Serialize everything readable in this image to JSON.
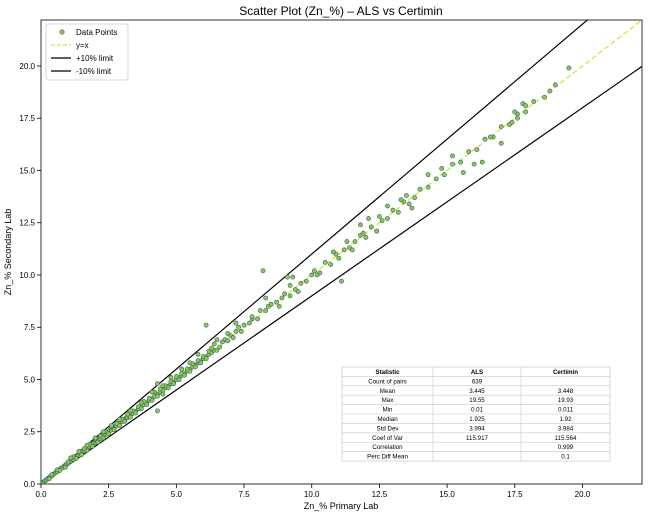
{
  "chart_data": {
    "type": "scatter",
    "title": "Scatter Plot (Zn_%) – ALS vs Certimin",
    "xlabel": "Zn_% Primary Lab",
    "ylabel": "Zn_% Secondary Lab",
    "xlim": [
      0,
      22.2
    ],
    "ylim": [
      0,
      22.2
    ],
    "xticks": [
      "0.0",
      "2.5",
      "5.0",
      "7.5",
      "10.0",
      "12.5",
      "15.0",
      "17.5",
      "20.0"
    ],
    "yticks": [
      "0.0",
      "2.5",
      "5.0",
      "7.5",
      "10.0",
      "12.5",
      "15.0",
      "17.5",
      "20.0"
    ],
    "grid": false,
    "legend_position": "top-left",
    "legend": [
      {
        "label": "Data Points",
        "kind": "marker",
        "color": "#8fc94a",
        "edge": "#2f5f6f"
      },
      {
        "label": "y=x",
        "kind": "dashed",
        "color": "#c9e84a"
      },
      {
        "label": "+10% limit",
        "kind": "solid",
        "color": "#000000"
      },
      {
        "label": "-10% limit",
        "kind": "solid",
        "color": "#000000"
      }
    ],
    "reference_lines": [
      {
        "name": "y=x",
        "slope": 1.0
      },
      {
        "name": "+10% limit",
        "slope": 1.1
      },
      {
        "name": "-10% limit",
        "slope": 0.9
      }
    ],
    "marker_color": "#8fc94a",
    "marker_edge": "#2f5f6f",
    "points": [
      [
        0.01,
        0.01
      ],
      [
        0.05,
        0.04
      ],
      [
        0.08,
        0.09
      ],
      [
        0.12,
        0.11
      ],
      [
        0.15,
        0.16
      ],
      [
        0.2,
        0.19
      ],
      [
        0.25,
        0.27
      ],
      [
        0.3,
        0.29
      ],
      [
        0.35,
        0.36
      ],
      [
        0.4,
        0.38
      ],
      [
        0.45,
        0.47
      ],
      [
        0.5,
        0.49
      ],
      [
        0.55,
        0.57
      ],
      [
        0.6,
        0.58
      ],
      [
        0.65,
        0.66
      ],
      [
        0.7,
        0.69
      ],
      [
        0.75,
        0.77
      ],
      [
        0.8,
        0.78
      ],
      [
        0.85,
        0.86
      ],
      [
        0.9,
        0.88
      ],
      [
        0.95,
        0.97
      ],
      [
        1.0,
        0.98
      ],
      [
        1.05,
        1.07
      ],
      [
        1.1,
        1.08
      ],
      [
        1.15,
        1.17
      ],
      [
        1.2,
        1.18
      ],
      [
        1.25,
        1.27
      ],
      [
        1.3,
        1.28
      ],
      [
        1.35,
        1.37
      ],
      [
        1.4,
        1.38
      ],
      [
        1.45,
        1.47
      ],
      [
        1.5,
        1.48
      ],
      [
        1.55,
        1.57
      ],
      [
        1.6,
        1.58
      ],
      [
        1.65,
        1.67
      ],
      [
        1.7,
        1.69
      ],
      [
        1.75,
        1.77
      ],
      [
        1.8,
        1.78
      ],
      [
        1.85,
        1.87
      ],
      [
        1.9,
        1.88
      ],
      [
        1.95,
        1.97
      ],
      [
        2.0,
        1.98
      ],
      [
        2.05,
        2.07
      ],
      [
        2.1,
        2.08
      ],
      [
        2.15,
        2.17
      ],
      [
        2.2,
        2.18
      ],
      [
        2.25,
        2.27
      ],
      [
        2.3,
        2.28
      ],
      [
        2.35,
        2.38
      ],
      [
        2.4,
        2.38
      ],
      [
        2.45,
        2.47
      ],
      [
        2.5,
        2.48
      ],
      [
        2.55,
        2.58
      ],
      [
        2.6,
        2.58
      ],
      [
        2.65,
        2.67
      ],
      [
        2.7,
        2.69
      ],
      [
        2.75,
        2.78
      ],
      [
        2.8,
        2.78
      ],
      [
        2.85,
        2.88
      ],
      [
        2.9,
        2.88
      ],
      [
        2.95,
        2.98
      ],
      [
        3.0,
        2.98
      ],
      [
        3.05,
        3.08
      ],
      [
        3.1,
        3.08
      ],
      [
        3.15,
        3.18
      ],
      [
        3.2,
        3.18
      ],
      [
        3.25,
        3.28
      ],
      [
        3.3,
        3.28
      ],
      [
        3.35,
        3.38
      ],
      [
        3.4,
        3.38
      ],
      [
        3.5,
        3.48
      ],
      [
        3.6,
        3.6
      ],
      [
        3.7,
        3.68
      ],
      [
        3.8,
        3.8
      ],
      [
        3.9,
        3.88
      ],
      [
        4.0,
        4.0
      ],
      [
        4.1,
        4.08
      ],
      [
        4.2,
        4.2
      ],
      [
        4.3,
        4.28
      ],
      [
        4.4,
        4.4
      ],
      [
        4.5,
        4.48
      ],
      [
        4.6,
        4.6
      ],
      [
        4.7,
        4.68
      ],
      [
        4.8,
        4.8
      ],
      [
        4.9,
        4.88
      ],
      [
        5.0,
        5.0
      ],
      [
        5.1,
        5.08
      ],
      [
        5.2,
        5.2
      ],
      [
        5.3,
        5.28
      ],
      [
        5.4,
        5.4
      ],
      [
        5.5,
        5.48
      ],
      [
        5.6,
        5.6
      ],
      [
        5.7,
        5.68
      ],
      [
        5.8,
        5.8
      ],
      [
        5.9,
        5.88
      ],
      [
        6.0,
        6.0
      ],
      [
        6.1,
        6.08
      ],
      [
        6.2,
        6.2
      ],
      [
        6.3,
        6.28
      ],
      [
        6.4,
        6.4
      ],
      [
        0.3,
        0.25
      ],
      [
        0.6,
        0.68
      ],
      [
        0.9,
        0.8
      ],
      [
        1.2,
        1.3
      ],
      [
        1.5,
        1.4
      ],
      [
        1.8,
        1.9
      ],
      [
        2.1,
        2.0
      ],
      [
        2.4,
        2.5
      ],
      [
        2.7,
        2.6
      ],
      [
        3.0,
        3.1
      ],
      [
        3.3,
        3.2
      ],
      [
        3.6,
        3.7
      ],
      [
        3.9,
        3.8
      ],
      [
        4.2,
        4.4
      ],
      [
        4.5,
        4.3
      ],
      [
        4.8,
        4.9
      ],
      [
        5.1,
        5.0
      ],
      [
        5.4,
        5.5
      ],
      [
        5.7,
        5.6
      ],
      [
        6.0,
        6.1
      ],
      [
        0.4,
        0.45
      ],
      [
        0.7,
        0.65
      ],
      [
        1.0,
        1.05
      ],
      [
        1.3,
        1.22
      ],
      [
        1.6,
        1.7
      ],
      [
        1.9,
        1.8
      ],
      [
        2.2,
        2.3
      ],
      [
        2.5,
        2.4
      ],
      [
        2.8,
        2.9
      ],
      [
        3.1,
        3.0
      ],
      [
        3.4,
        3.5
      ],
      [
        3.7,
        3.6
      ],
      [
        4.0,
        4.1
      ],
      [
        4.3,
        4.2
      ],
      [
        4.6,
        4.7
      ],
      [
        4.9,
        4.8
      ],
      [
        5.2,
        5.3
      ],
      [
        5.5,
        5.4
      ],
      [
        5.8,
        5.9
      ],
      [
        6.1,
        6.0
      ],
      [
        1.1,
        1.25
      ],
      [
        1.4,
        1.55
      ],
      [
        1.7,
        1.6
      ],
      [
        2.0,
        2.15
      ],
      [
        2.3,
        2.2
      ],
      [
        2.6,
        2.75
      ],
      [
        2.9,
        2.8
      ],
      [
        3.2,
        3.35
      ],
      [
        3.5,
        3.4
      ],
      [
        3.8,
        3.95
      ],
      [
        4.1,
        4.0
      ],
      [
        4.4,
        4.55
      ],
      [
        4.7,
        4.6
      ],
      [
        5.0,
        5.15
      ],
      [
        5.3,
        5.2
      ],
      [
        5.6,
        5.75
      ],
      [
        5.9,
        5.8
      ],
      [
        6.2,
        6.35
      ],
      [
        6.5,
        6.4
      ],
      [
        6.8,
        6.9
      ],
      [
        6.6,
        6.55
      ],
      [
        6.7,
        6.8
      ],
      [
        6.9,
        6.85
      ],
      [
        7.0,
        7.1
      ],
      [
        7.1,
        7.0
      ],
      [
        7.2,
        7.3
      ],
      [
        7.4,
        7.3
      ],
      [
        7.5,
        7.6
      ],
      [
        7.7,
        7.7
      ],
      [
        7.8,
        7.9
      ],
      [
        8.0,
        7.9
      ],
      [
        8.1,
        8.3
      ],
      [
        8.3,
        8.3
      ],
      [
        8.4,
        8.5
      ],
      [
        8.5,
        8.6
      ],
      [
        8.7,
        8.7
      ],
      [
        8.9,
        8.9
      ],
      [
        9.0,
        9.1
      ],
      [
        9.2,
        9.0
      ],
      [
        9.4,
        9.3
      ],
      [
        9.6,
        9.6
      ],
      [
        9.8,
        9.7
      ],
      [
        10.0,
        10.0
      ],
      [
        10.1,
        10.2
      ],
      [
        10.3,
        10.1
      ],
      [
        10.5,
        10.6
      ],
      [
        10.7,
        10.5
      ],
      [
        10.9,
        11.0
      ],
      [
        11.0,
        10.8
      ],
      [
        11.2,
        11.2
      ],
      [
        11.4,
        11.3
      ],
      [
        11.6,
        11.6
      ],
      [
        11.8,
        11.9
      ],
      [
        12.0,
        11.8
      ],
      [
        12.2,
        12.3
      ],
      [
        12.4,
        12.1
      ],
      [
        12.6,
        12.6
      ],
      [
        12.8,
        12.7
      ],
      [
        13.0,
        13.1
      ],
      [
        13.2,
        13.0
      ],
      [
        13.4,
        13.5
      ],
      [
        13.6,
        13.4
      ],
      [
        13.8,
        13.7
      ],
      [
        14.0,
        14.1
      ],
      [
        14.3,
        14.2
      ],
      [
        14.6,
        14.6
      ],
      [
        14.9,
        14.8
      ],
      [
        15.2,
        15.3
      ],
      [
        15.5,
        15.4
      ],
      [
        15.8,
        15.9
      ],
      [
        16.1,
        16.0
      ],
      [
        16.4,
        16.5
      ],
      [
        16.7,
        16.6
      ],
      [
        17.0,
        17.1
      ],
      [
        17.3,
        17.2
      ],
      [
        17.6,
        17.7
      ],
      [
        17.9,
        17.8
      ],
      [
        18.2,
        18.3
      ],
      [
        18.6,
        18.5
      ],
      [
        19.0,
        19.1
      ],
      [
        4.3,
        4.8
      ],
      [
        4.3,
        3.5
      ],
      [
        6.1,
        7.6
      ],
      [
        6.3,
        6.5
      ],
      [
        6.5,
        6.9
      ],
      [
        7.2,
        7.7
      ],
      [
        8.2,
        10.2
      ],
      [
        8.3,
        8.9
      ],
      [
        9.1,
        9.9
      ],
      [
        9.3,
        9.9
      ],
      [
        9.5,
        9.2
      ],
      [
        10.2,
        10.0
      ],
      [
        10.8,
        11.1
      ],
      [
        11.1,
        9.7
      ],
      [
        11.3,
        11.6
      ],
      [
        11.5,
        11.2
      ],
      [
        11.8,
        12.4
      ],
      [
        12.1,
        12.7
      ],
      [
        12.4,
        12.1
      ],
      [
        12.8,
        13.3
      ],
      [
        13.3,
        13.6
      ],
      [
        13.7,
        13.2
      ],
      [
        14.3,
        14.8
      ],
      [
        14.8,
        15.1
      ],
      [
        15.2,
        15.7
      ],
      [
        15.6,
        14.9
      ],
      [
        16.0,
        15.3
      ],
      [
        16.3,
        15.4
      ],
      [
        16.6,
        16.6
      ],
      [
        17.0,
        16.3
      ],
      [
        17.4,
        17.3
      ],
      [
        17.6,
        17.5
      ],
      [
        17.8,
        18.2
      ],
      [
        18.8,
        18.8
      ],
      [
        19.5,
        19.9
      ],
      [
        17.5,
        17.8
      ],
      [
        17.9,
        18.1
      ],
      [
        13.5,
        13.8
      ],
      [
        12.5,
        12.8
      ],
      [
        11.9,
        12.0
      ],
      [
        9.2,
        9.5
      ],
      [
        8.8,
        8.5
      ],
      [
        7.8,
        8.0
      ],
      [
        7.3,
        7.5
      ],
      [
        6.9,
        7.2
      ],
      [
        6.4,
        6.7
      ],
      [
        5.8,
        6.2
      ],
      [
        5.5,
        5.8
      ],
      [
        5.2,
        5.5
      ],
      [
        4.8,
        5.1
      ],
      [
        4.5,
        4.7
      ],
      [
        4.1,
        4.4
      ],
      [
        3.7,
        3.9
      ],
      [
        3.3,
        3.5
      ],
      [
        2.9,
        3.1
      ],
      [
        2.6,
        2.8
      ],
      [
        2.3,
        2.5
      ],
      [
        2.0,
        2.2
      ],
      [
        1.7,
        1.85
      ],
      [
        1.4,
        1.55
      ]
    ],
    "stats_table": {
      "headers": [
        "Statistic",
        "ALS",
        "Certimin"
      ],
      "rows": [
        [
          "Count of pairs",
          "639",
          ""
        ],
        [
          "Mean",
          "3.445",
          "3.448"
        ],
        [
          "Max",
          "19.55",
          "19.93"
        ],
        [
          "Min",
          "0.01",
          "0.011"
        ],
        [
          "Median",
          "1.925",
          "1.92"
        ],
        [
          "Std Dev",
          "3.994",
          "3.984"
        ],
        [
          "Coef of Var",
          "115.917",
          "115.564"
        ],
        [
          "Correlation",
          "",
          "0.999"
        ],
        [
          "Perc Diff Mean",
          "",
          "0.1"
        ]
      ]
    }
  }
}
